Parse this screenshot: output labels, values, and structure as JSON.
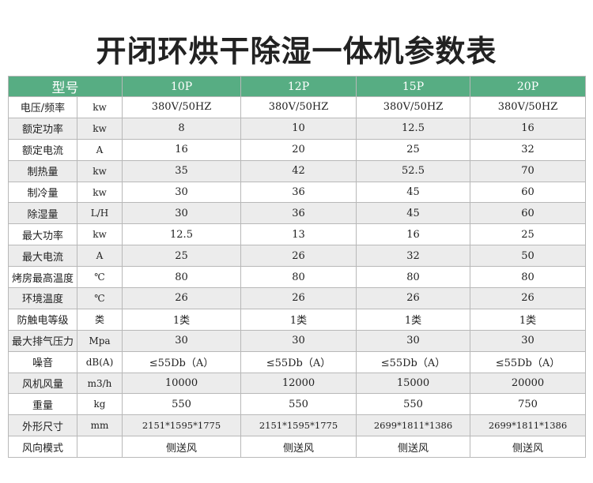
{
  "title": "开闭环烘干除湿一体机参数表",
  "header": {
    "model_label": "型号",
    "models": [
      "10P",
      "12P",
      "15P",
      "20P"
    ]
  },
  "rows": [
    {
      "param": "电压/频率",
      "unit": "kw",
      "values": [
        "380V/50HZ",
        "380V/50HZ",
        "380V/50HZ",
        "380V/50HZ"
      ]
    },
    {
      "param": "额定功率",
      "unit": "kw",
      "values": [
        "8",
        "10",
        "12.5",
        "16"
      ]
    },
    {
      "param": "额定电流",
      "unit": "A",
      "values": [
        "16",
        "20",
        "25",
        "32"
      ]
    },
    {
      "param": "制热量",
      "unit": "kw",
      "values": [
        "35",
        "42",
        "52.5",
        "70"
      ]
    },
    {
      "param": "制冷量",
      "unit": "kw",
      "values": [
        "30",
        "36",
        "45",
        "60"
      ]
    },
    {
      "param": "除湿量",
      "unit": "L/H",
      "values": [
        "30",
        "36",
        "45",
        "60"
      ]
    },
    {
      "param": "最大功率",
      "unit": "kw",
      "values": [
        "12.5",
        "13",
        "16",
        "25"
      ]
    },
    {
      "param": "最大电流",
      "unit": "A",
      "values": [
        "25",
        "26",
        "32",
        "50"
      ]
    },
    {
      "param": "烤房最高温度",
      "unit": "℃",
      "values": [
        "80",
        "80",
        "80",
        "80"
      ]
    },
    {
      "param": "环境温度",
      "unit": "℃",
      "values": [
        "26",
        "26",
        "26",
        "26"
      ]
    },
    {
      "param": "防触电等级",
      "unit": "类",
      "values": [
        "1类",
        "1类",
        "1类",
        "1类"
      ]
    },
    {
      "param": "最大排气压力",
      "unit": "Mpa",
      "values": [
        "30",
        "30",
        "30",
        "30"
      ]
    },
    {
      "param": "噪音",
      "unit": "dB(A)",
      "values": [
        "≤55Db（A）",
        "≤55Db（A）",
        "≤55Db（A）",
        "≤55Db（A）"
      ]
    },
    {
      "param": "风机风量",
      "unit": "m3/h",
      "values": [
        "10000",
        "12000",
        "15000",
        "20000"
      ]
    },
    {
      "param": "重量",
      "unit": "kg",
      "values": [
        "550",
        "550",
        "550",
        "750"
      ]
    },
    {
      "param": "外形尺寸",
      "unit": "mm",
      "values": [
        "2151*1595*1775",
        "2151*1595*1775",
        "2699*1811*1386",
        "2699*1811*1386"
      ]
    },
    {
      "param": "风向模式",
      "unit": "",
      "values": [
        "侧送风",
        "侧送风",
        "侧送风",
        "侧送风"
      ]
    }
  ]
}
